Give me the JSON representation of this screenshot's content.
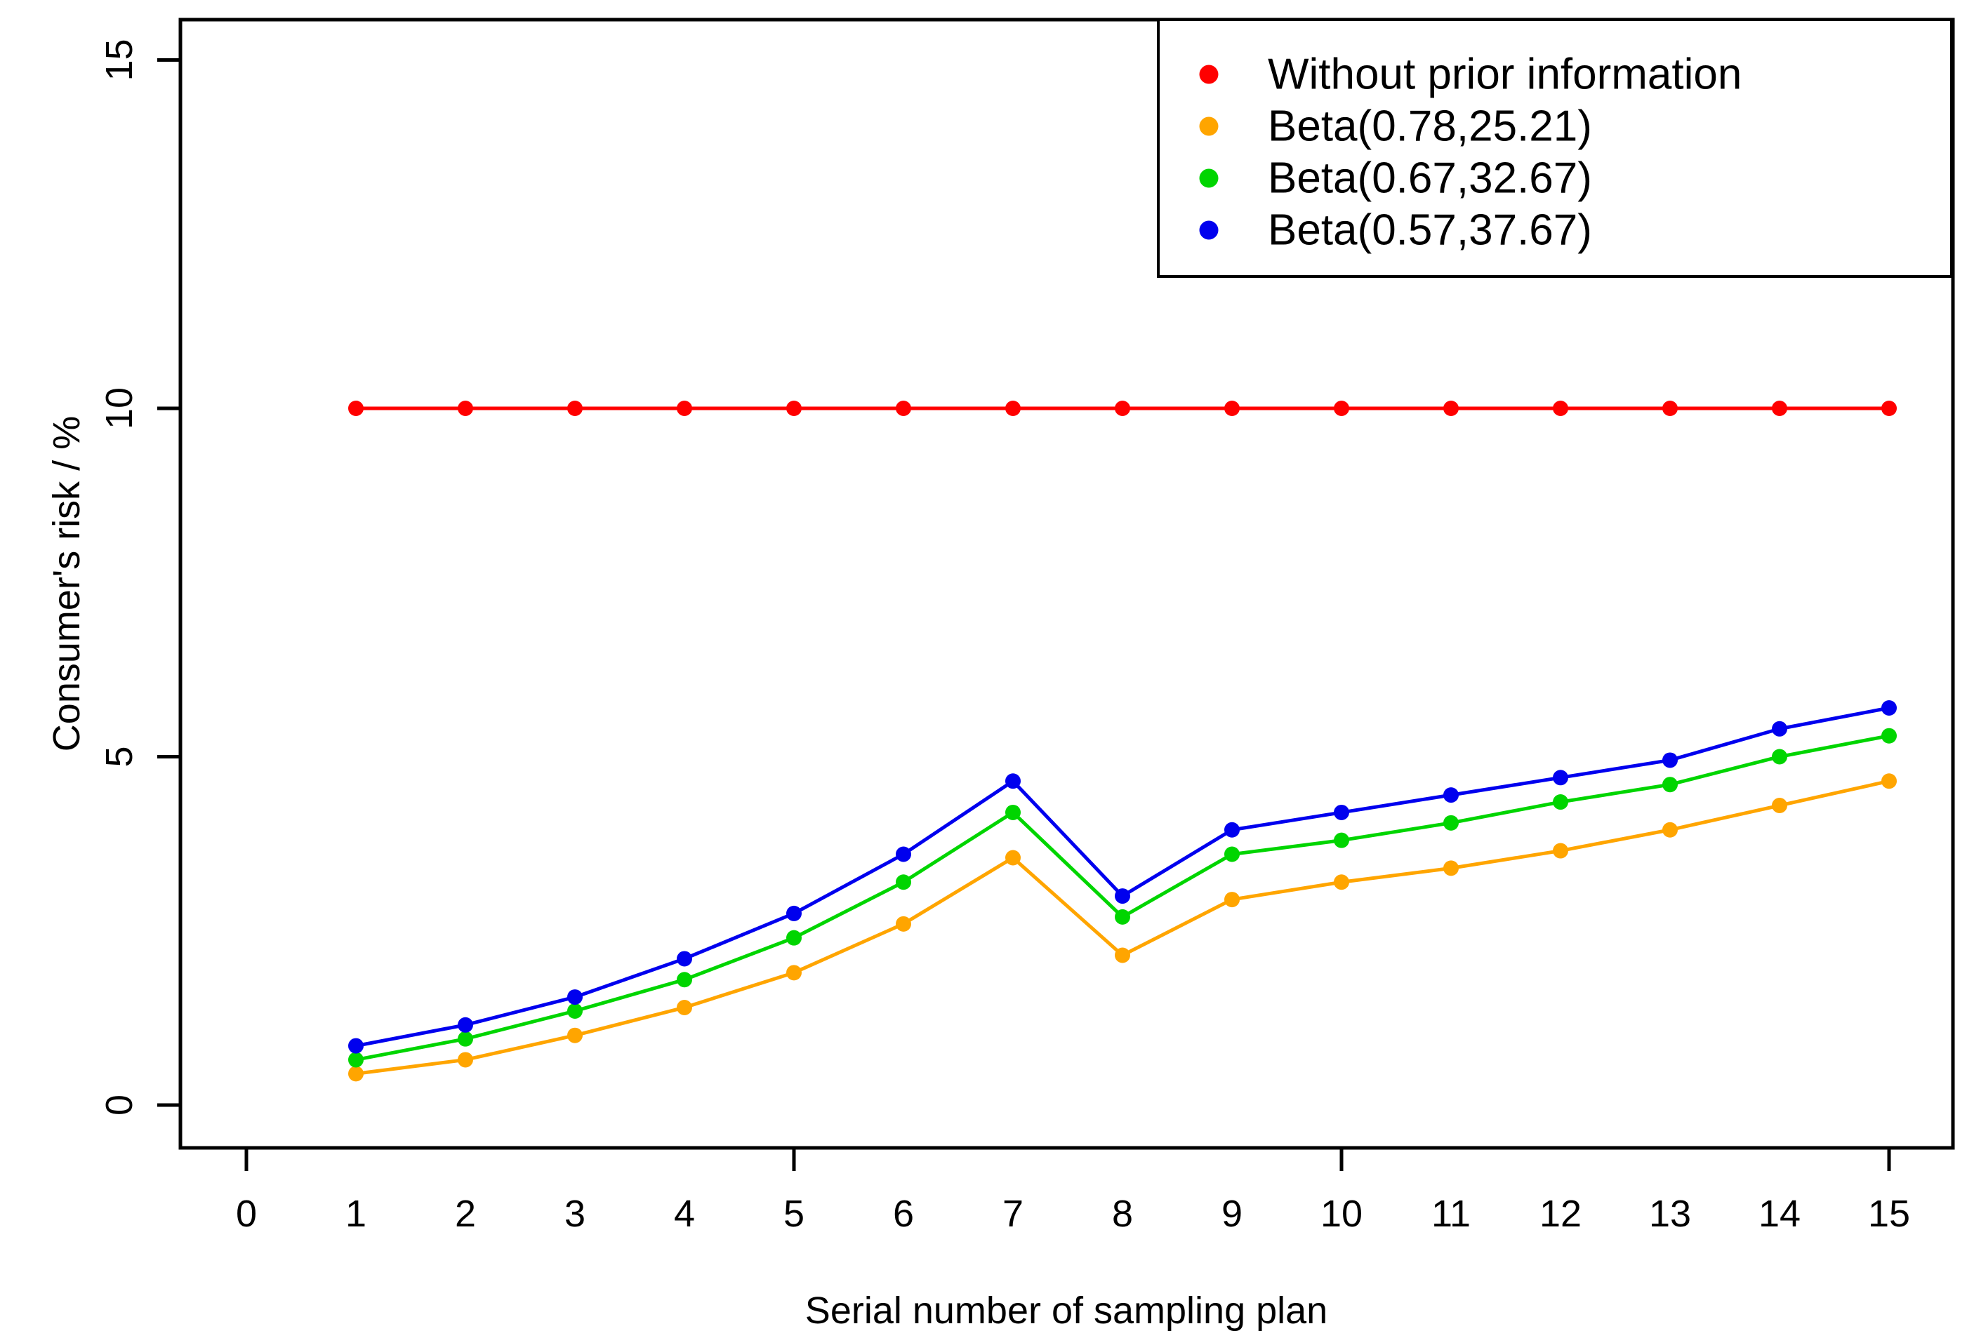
{
  "chart_data": {
    "type": "line",
    "title": "",
    "xlabel": "Serial number of sampling plan",
    "ylabel": "Consumer's risk / %",
    "grid": false,
    "marker": "filled-circle",
    "legend_position": "top-right",
    "x_axis": {
      "label": "Serial number of sampling plan",
      "tick_labels": [
        "0",
        "1",
        "2",
        "3",
        "4",
        "5",
        "6",
        "7",
        "8",
        "9",
        "10",
        "11",
        "12",
        "13",
        "14",
        "15"
      ],
      "major_ticks": [
        0,
        5,
        10,
        15
      ],
      "range": [
        -0.6,
        15.6
      ]
    },
    "y_axis": {
      "label": "Consumer's risk / %",
      "tick_labels": [
        "0",
        "5",
        "10",
        "15"
      ],
      "major_ticks": [
        0,
        5,
        10,
        15
      ],
      "range": [
        -0.6,
        15.6
      ]
    },
    "x": [
      1,
      2,
      3,
      4,
      5,
      6,
      7,
      8,
      9,
      10,
      11,
      12,
      13,
      14,
      15
    ],
    "series": [
      {
        "name": "Without prior information",
        "color": "#FF0000",
        "values": [
          10,
          10,
          10,
          10,
          10,
          10,
          10,
          10,
          10,
          10,
          10,
          10,
          10,
          10,
          10
        ]
      },
      {
        "name": "Beta(0.78,25.21)",
        "color": "#FFA500",
        "values": [
          0.45,
          0.65,
          1.0,
          1.4,
          1.9,
          2.6,
          3.55,
          2.15,
          2.95,
          3.2,
          3.4,
          3.65,
          3.95,
          4.3,
          4.65
        ]
      },
      {
        "name": "Beta(0.67,32.67)",
        "color": "#00D500",
        "values": [
          0.65,
          0.95,
          1.35,
          1.8,
          2.4,
          3.2,
          4.2,
          2.7,
          3.6,
          3.8,
          4.05,
          4.35,
          4.6,
          5.0,
          5.3
        ]
      },
      {
        "name": "Beta(0.57,37.67)",
        "color": "#0000EE",
        "values": [
          0.85,
          1.15,
          1.55,
          2.1,
          2.75,
          3.6,
          4.65,
          3.0,
          3.95,
          4.2,
          4.45,
          4.7,
          4.95,
          5.4,
          5.7
        ]
      }
    ]
  }
}
